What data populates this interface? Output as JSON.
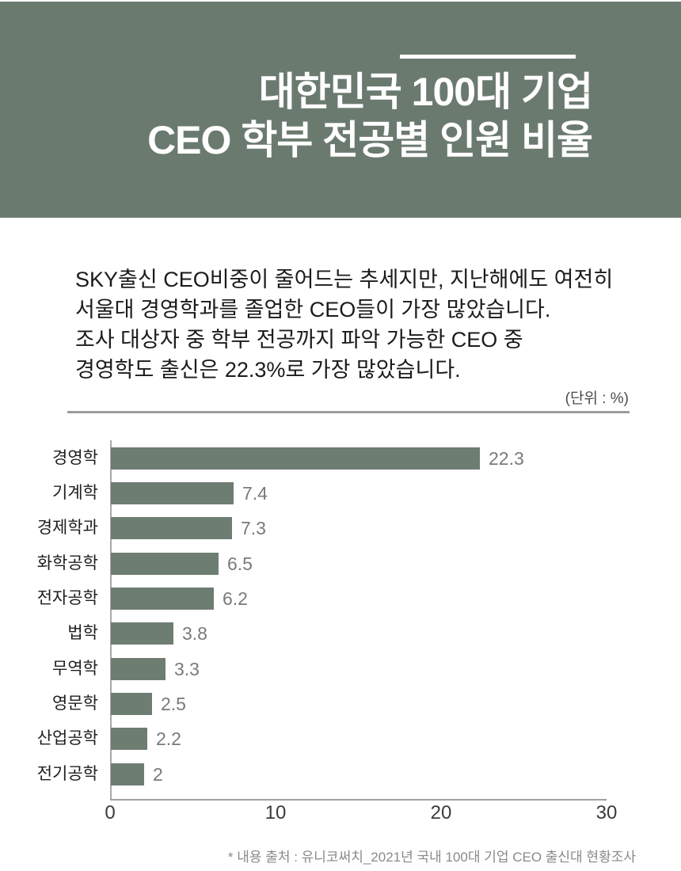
{
  "header": {
    "title_line1": "대한민국 100대 기업",
    "title_line2": "CEO 학부 전공별 인원 비율",
    "bg_color": "#6b7a6f",
    "accent_line_color": "#ffffff",
    "text_color": "#ffffff"
  },
  "intro": {
    "lines": [
      "SKY출신 CEO비중이 줄어드는 추세지만, 지난해에도 여전히",
      "서울대 경영학과를 졸업한 CEO들이 가장 많았습니다.",
      "조사 대상자 중 학부 전공까지 파악 가능한 CEO 중",
      "경영학도 출신은 22.3%로 가장 많았습니다."
    ]
  },
  "chart": {
    "unit_label": "(단위 : %)",
    "bar_color": "#6e7d72",
    "value_label_color": "#7a7a7a",
    "axis_color": "#a0a0a0"
  },
  "chart_data": {
    "type": "bar",
    "orientation": "horizontal",
    "title": "대한민국 100대 기업 CEO 학부 전공별 인원 비율",
    "categories": [
      "경영학",
      "기계학",
      "경제학과",
      "화학공학",
      "전자공학",
      "법학",
      "무역학",
      "영문학",
      "산업공학",
      "전기공학"
    ],
    "values": [
      22.3,
      7.4,
      7.3,
      6.5,
      6.2,
      3.8,
      3.3,
      2.5,
      2.2,
      2
    ],
    "value_labels": [
      "22.3",
      "7.4",
      "7.3",
      "6.5",
      "6.2",
      "3.8",
      "3.3",
      "2.5",
      "2.2",
      "2"
    ],
    "unit": "%",
    "xlabel": "",
    "ylabel": "",
    "xlim": [
      0,
      30
    ],
    "xticks": [
      0,
      10,
      20,
      30
    ],
    "grid": false,
    "legend": false
  },
  "footnote": "* 내용 출처 : 유니코써치_2021년 국내 100대 기업 CEO 출신대 현황조사"
}
